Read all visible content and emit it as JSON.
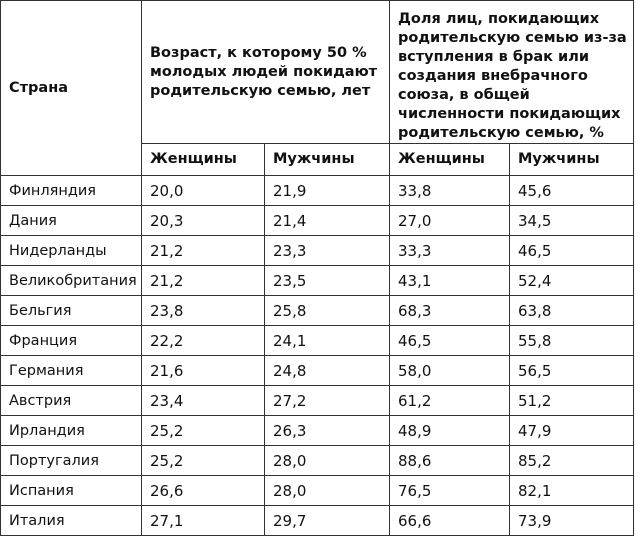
{
  "table": {
    "header": {
      "country": "Страна",
      "age_group": "Возраст, к которому 50 % молодых людей покидают родительскую семью, лет",
      "share_group": "Доля лиц, покидающих родительскую семью из-за вступления в брак или создания внебрачного союза, в общей численности покидающих родительскую семью, %",
      "sub": [
        "Женщины",
        "Мужчины",
        "Женщины",
        "Мужчины"
      ]
    },
    "rows": [
      {
        "country": "Финляндия",
        "values": [
          "20,0",
          "21,9",
          "33,8",
          "45,6"
        ]
      },
      {
        "country": "Дания",
        "values": [
          "20,3",
          "21,4",
          "27,0",
          "34,5"
        ]
      },
      {
        "country": "Нидерланды",
        "values": [
          "21,2",
          "23,3",
          "33,3",
          "46,5"
        ]
      },
      {
        "country": "Великобритания",
        "values": [
          "21,2",
          "23,5",
          "43,1",
          "52,4"
        ]
      },
      {
        "country": "Бельгия",
        "values": [
          "23,8",
          "25,8",
          "68,3",
          "63,8"
        ]
      },
      {
        "country": "Франция",
        "values": [
          "22,2",
          "24,1",
          "46,5",
          "55,8"
        ]
      },
      {
        "country": "Германия",
        "values": [
          "21,6",
          "24,8",
          "58,0",
          "56,5"
        ]
      },
      {
        "country": "Австрия",
        "values": [
          "23,4",
          "27,2",
          "61,2",
          "51,2"
        ]
      },
      {
        "country": "Ирландия",
        "values": [
          "25,2",
          "26,3",
          "48,9",
          "47,9"
        ]
      },
      {
        "country": "Португалия",
        "values": [
          "25,2",
          "28,0",
          "88,6",
          "85,2"
        ]
      },
      {
        "country": "Испания",
        "values": [
          "26,6",
          "28,0",
          "76,5",
          "82,1"
        ]
      },
      {
        "country": "Италия",
        "values": [
          "27,1",
          "29,7",
          "66,6",
          "73,9"
        ]
      }
    ]
  }
}
